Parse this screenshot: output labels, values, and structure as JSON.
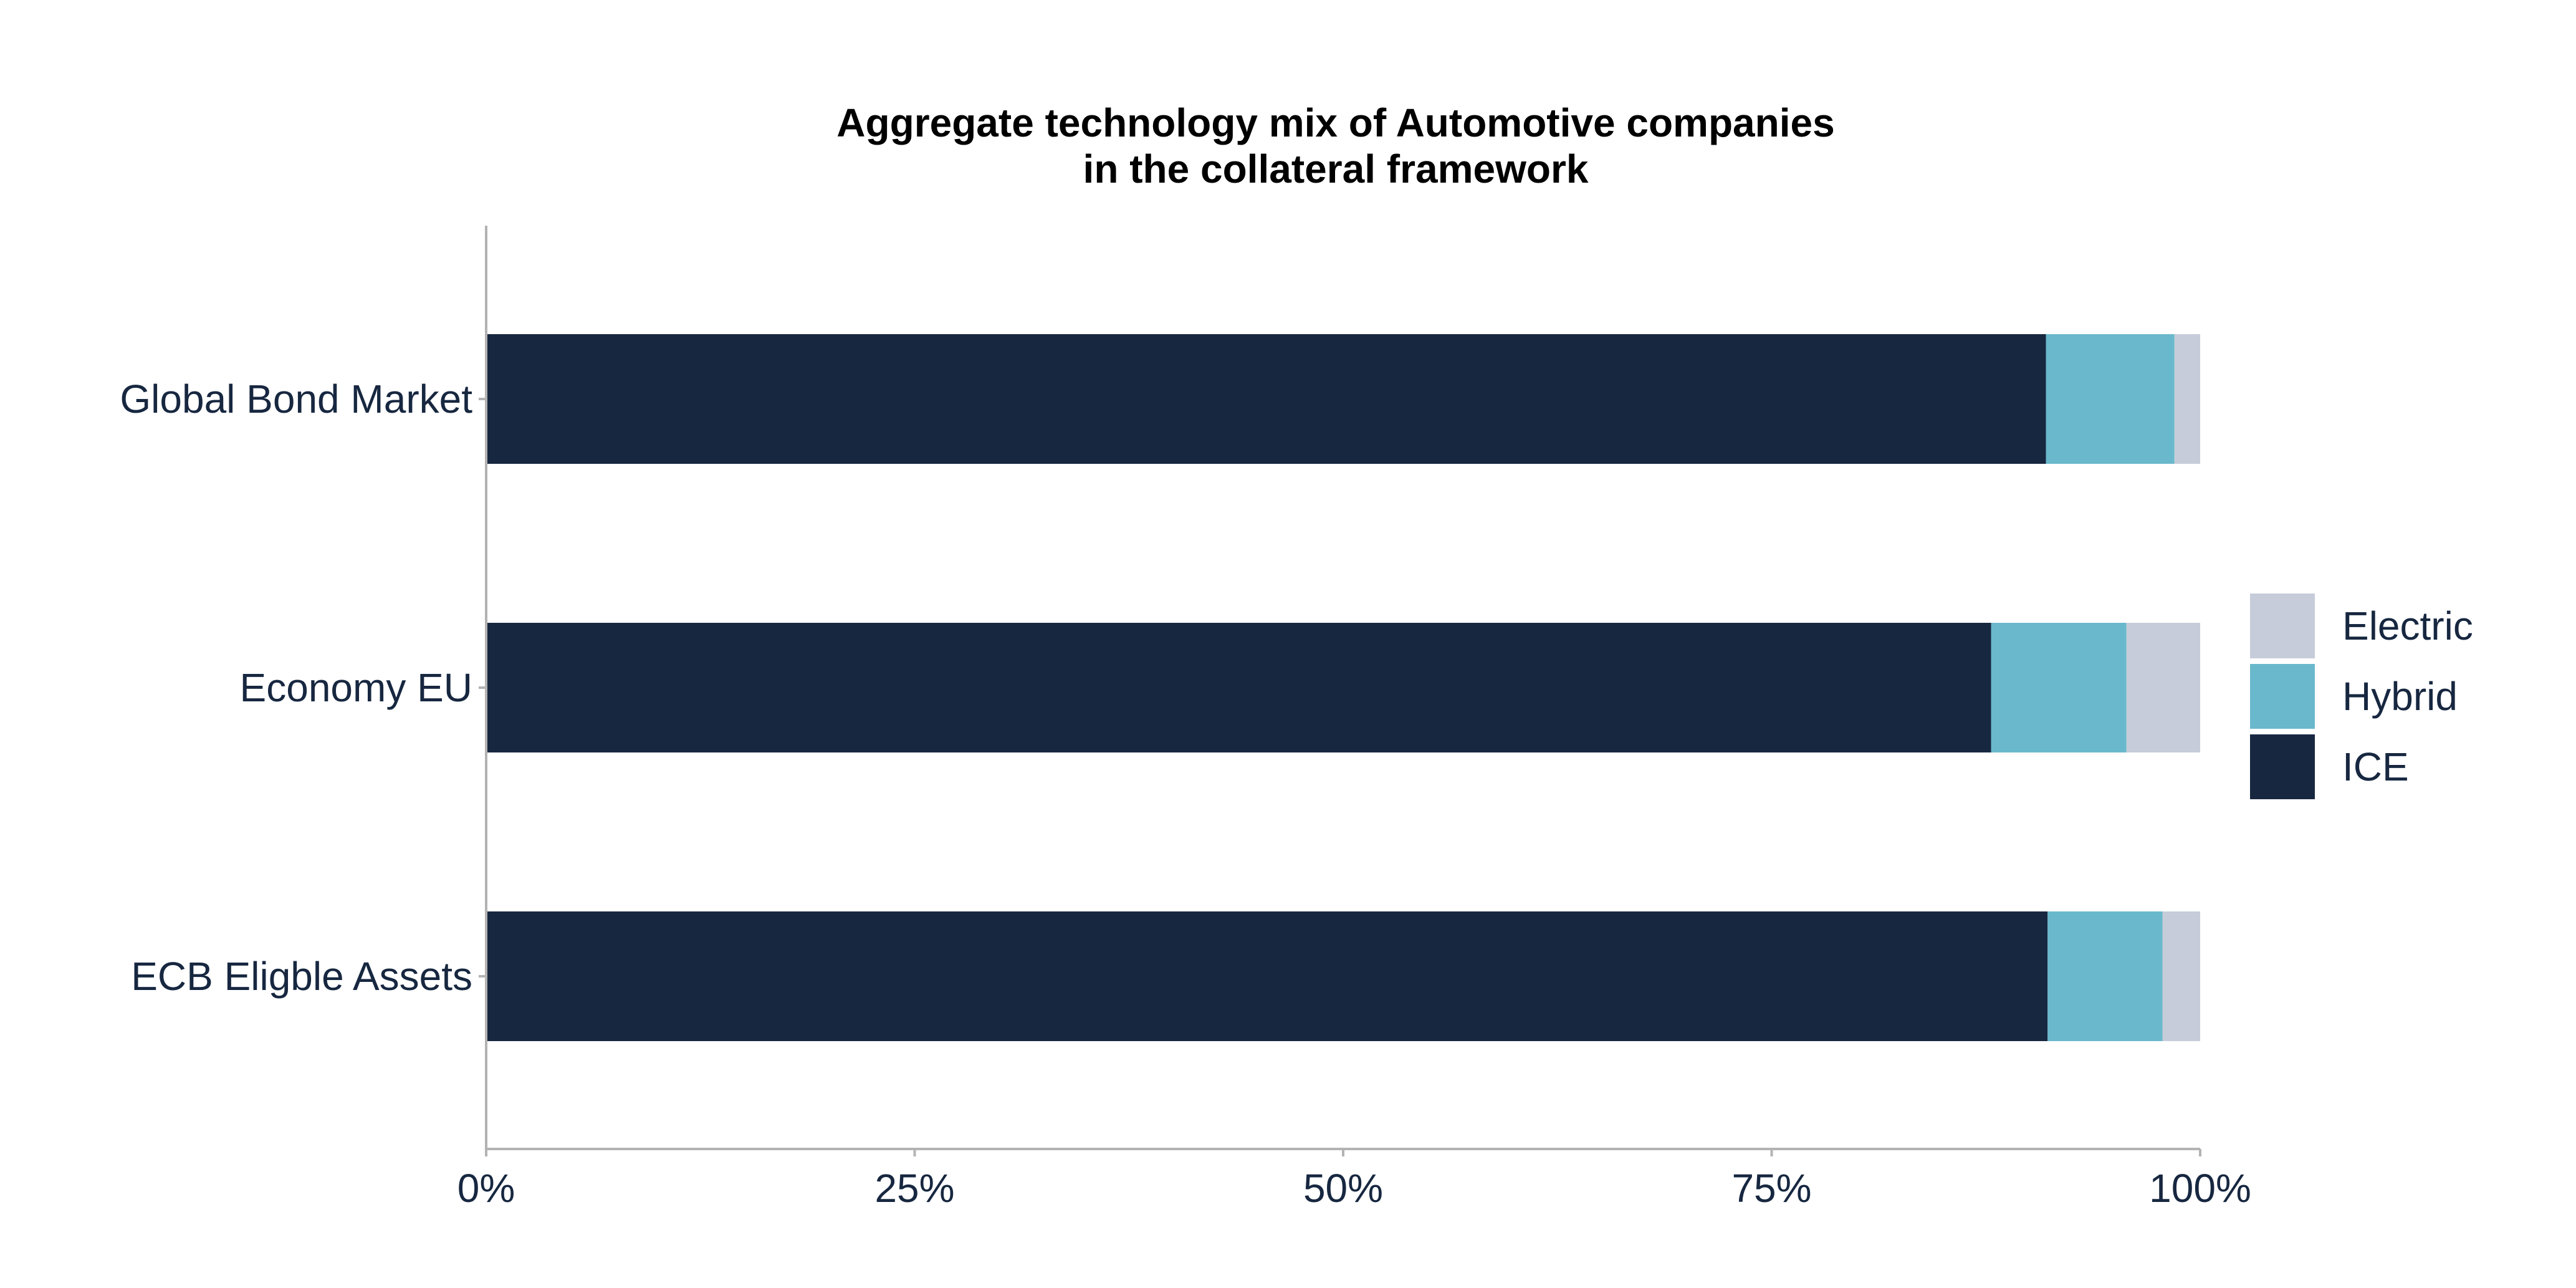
{
  "chart_data": {
    "type": "bar",
    "orientation": "horizontal",
    "stacked": true,
    "title": "Aggregate technology mix of Automotive companies\nin the collateral framework",
    "title_lines": [
      "Aggregate technology mix of Automotive companies",
      "in the collateral framework"
    ],
    "categories": [
      "Global Bond Market",
      "Economy EU",
      "ECB Eligble Assets"
    ],
    "series": [
      {
        "name": "ICE",
        "color": "#182740",
        "values": [
          91.0,
          87.8,
          91.1
        ]
      },
      {
        "name": "Hybrid",
        "color": "#6AB8CC",
        "values": [
          7.5,
          7.9,
          6.7
        ]
      },
      {
        "name": "Electric",
        "color": "#C6CCD9",
        "values": [
          1.5,
          4.3,
          2.2
        ]
      }
    ],
    "legend_order": [
      "Electric",
      "Hybrid",
      "ICE"
    ],
    "legend_position": "right",
    "xlim": [
      0,
      100
    ],
    "xticks": [
      0,
      25,
      50,
      75,
      100
    ],
    "xtick_labels": [
      "0%",
      "25%",
      "50%",
      "75%",
      "100%"
    ],
    "xlabel": "",
    "ylabel": "",
    "grid": false
  }
}
